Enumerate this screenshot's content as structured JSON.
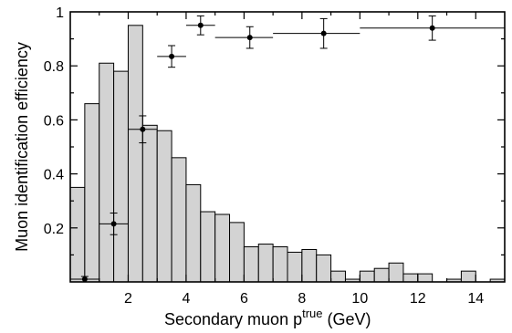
{
  "chart_data": {
    "type": "bar",
    "xlabel": "Secondary muon p",
    "xlabel_sup": "true",
    "xlabel_unit": "(GeV)",
    "ylabel": "Muon identification efficiency",
    "xlim": [
      0,
      15
    ],
    "ylim": [
      0,
      1
    ],
    "x_ticks": [
      2,
      4,
      6,
      8,
      10,
      12,
      14
    ],
    "y_ticks": [
      0.2,
      0.4,
      0.6,
      0.8,
      1
    ],
    "y_tick_labels": [
      "0.2",
      "0.4",
      "0.6",
      "0.8",
      "1"
    ],
    "histogram": {
      "bin_width": 0.5,
      "bin_start": 0,
      "values": [
        0.35,
        0.66,
        0.81,
        0.78,
        0.95,
        0.58,
        0.56,
        0.46,
        0.36,
        0.26,
        0.25,
        0.22,
        0.13,
        0.14,
        0.13,
        0.11,
        0.12,
        0.1,
        0.04,
        0.01,
        0.04,
        0.05,
        0.07,
        0.03,
        0.03,
        0,
        0.01,
        0.04,
        0,
        0.01
      ]
    },
    "efficiency_points": [
      {
        "x": 0.5,
        "y": 0.01,
        "xerr_low": 0.5,
        "xerr_high": 0.5,
        "yerr": 0.01
      },
      {
        "x": 1.5,
        "y": 0.215,
        "xerr_low": 0.5,
        "xerr_high": 0.5,
        "yerr": 0.04
      },
      {
        "x": 2.5,
        "y": 0.565,
        "xerr_low": 0.5,
        "xerr_high": 0.5,
        "yerr": 0.05
      },
      {
        "x": 3.5,
        "y": 0.835,
        "xerr_low": 0.5,
        "xerr_high": 0.5,
        "yerr": 0.04
      },
      {
        "x": 4.5,
        "y": 0.95,
        "xerr_low": 0.5,
        "xerr_high": 0.5,
        "yerr": 0.035
      },
      {
        "x": 6.2,
        "y": 0.905,
        "xerr_low": 1.2,
        "xerr_high": 0.8,
        "yerr": 0.04
      },
      {
        "x": 8.75,
        "y": 0.92,
        "xerr_low": 1.75,
        "xerr_high": 1.25,
        "yerr": 0.055
      },
      {
        "x": 12.5,
        "y": 0.94,
        "xerr_low": 2.5,
        "xerr_high": 2.5,
        "yerr": 0.045
      }
    ]
  }
}
